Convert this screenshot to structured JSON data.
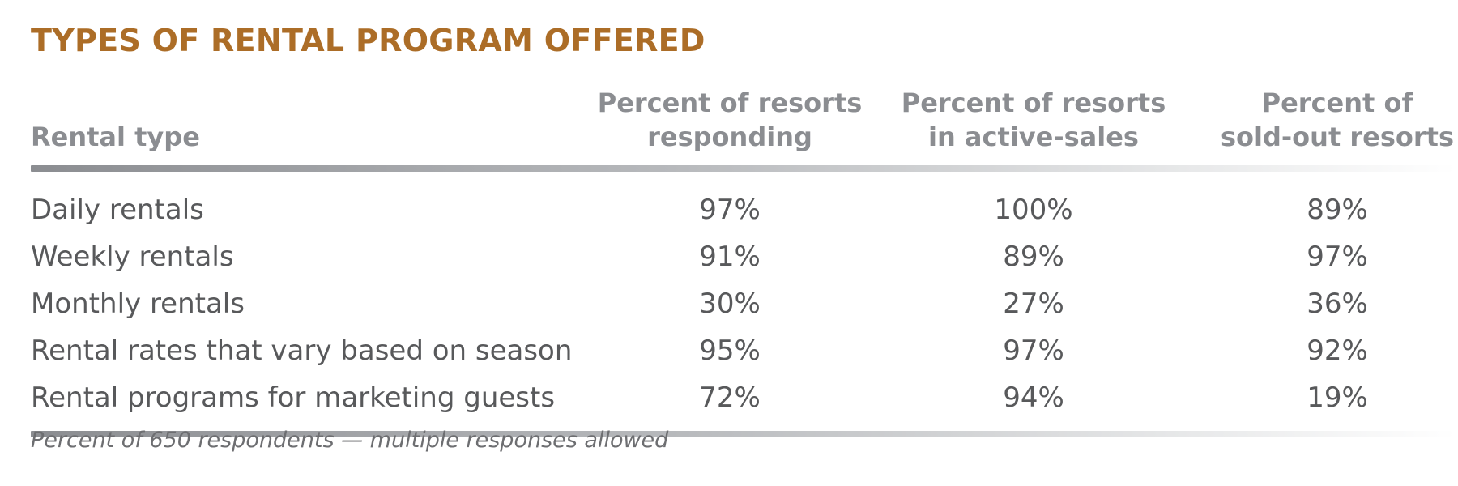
{
  "chart_data": {
    "type": "table",
    "title": "TYPES OF RENTAL PROGRAM OFFERED",
    "columns": [
      {
        "label_lines": [
          "Rental type"
        ]
      },
      {
        "label_lines": [
          "Percent of resorts",
          "responding"
        ]
      },
      {
        "label_lines": [
          "Percent of resorts",
          "in active-sales"
        ]
      },
      {
        "label_lines": [
          "Percent of",
          "sold-out resorts"
        ]
      }
    ],
    "rows": [
      {
        "label": "Daily rentals",
        "values": [
          "97%",
          "100%",
          "89%"
        ]
      },
      {
        "label": "Weekly rentals",
        "values": [
          "91%",
          "89%",
          "97%"
        ]
      },
      {
        "label": "Monthly rentals",
        "values": [
          "30%",
          "27%",
          "36%"
        ]
      },
      {
        "label": "Rental rates that vary based on season",
        "values": [
          "95%",
          "97%",
          "92%"
        ]
      },
      {
        "label": "Rental programs for marketing guests",
        "values": [
          "72%",
          "94%",
          "19%"
        ]
      }
    ],
    "footnote": "Percent of 650 respondents — multiple responses allowed"
  },
  "colors": {
    "title": "#ac6d27",
    "header_text": "#8b8d91",
    "body_text": "#58595b",
    "rule_start": "#8b8d91"
  }
}
